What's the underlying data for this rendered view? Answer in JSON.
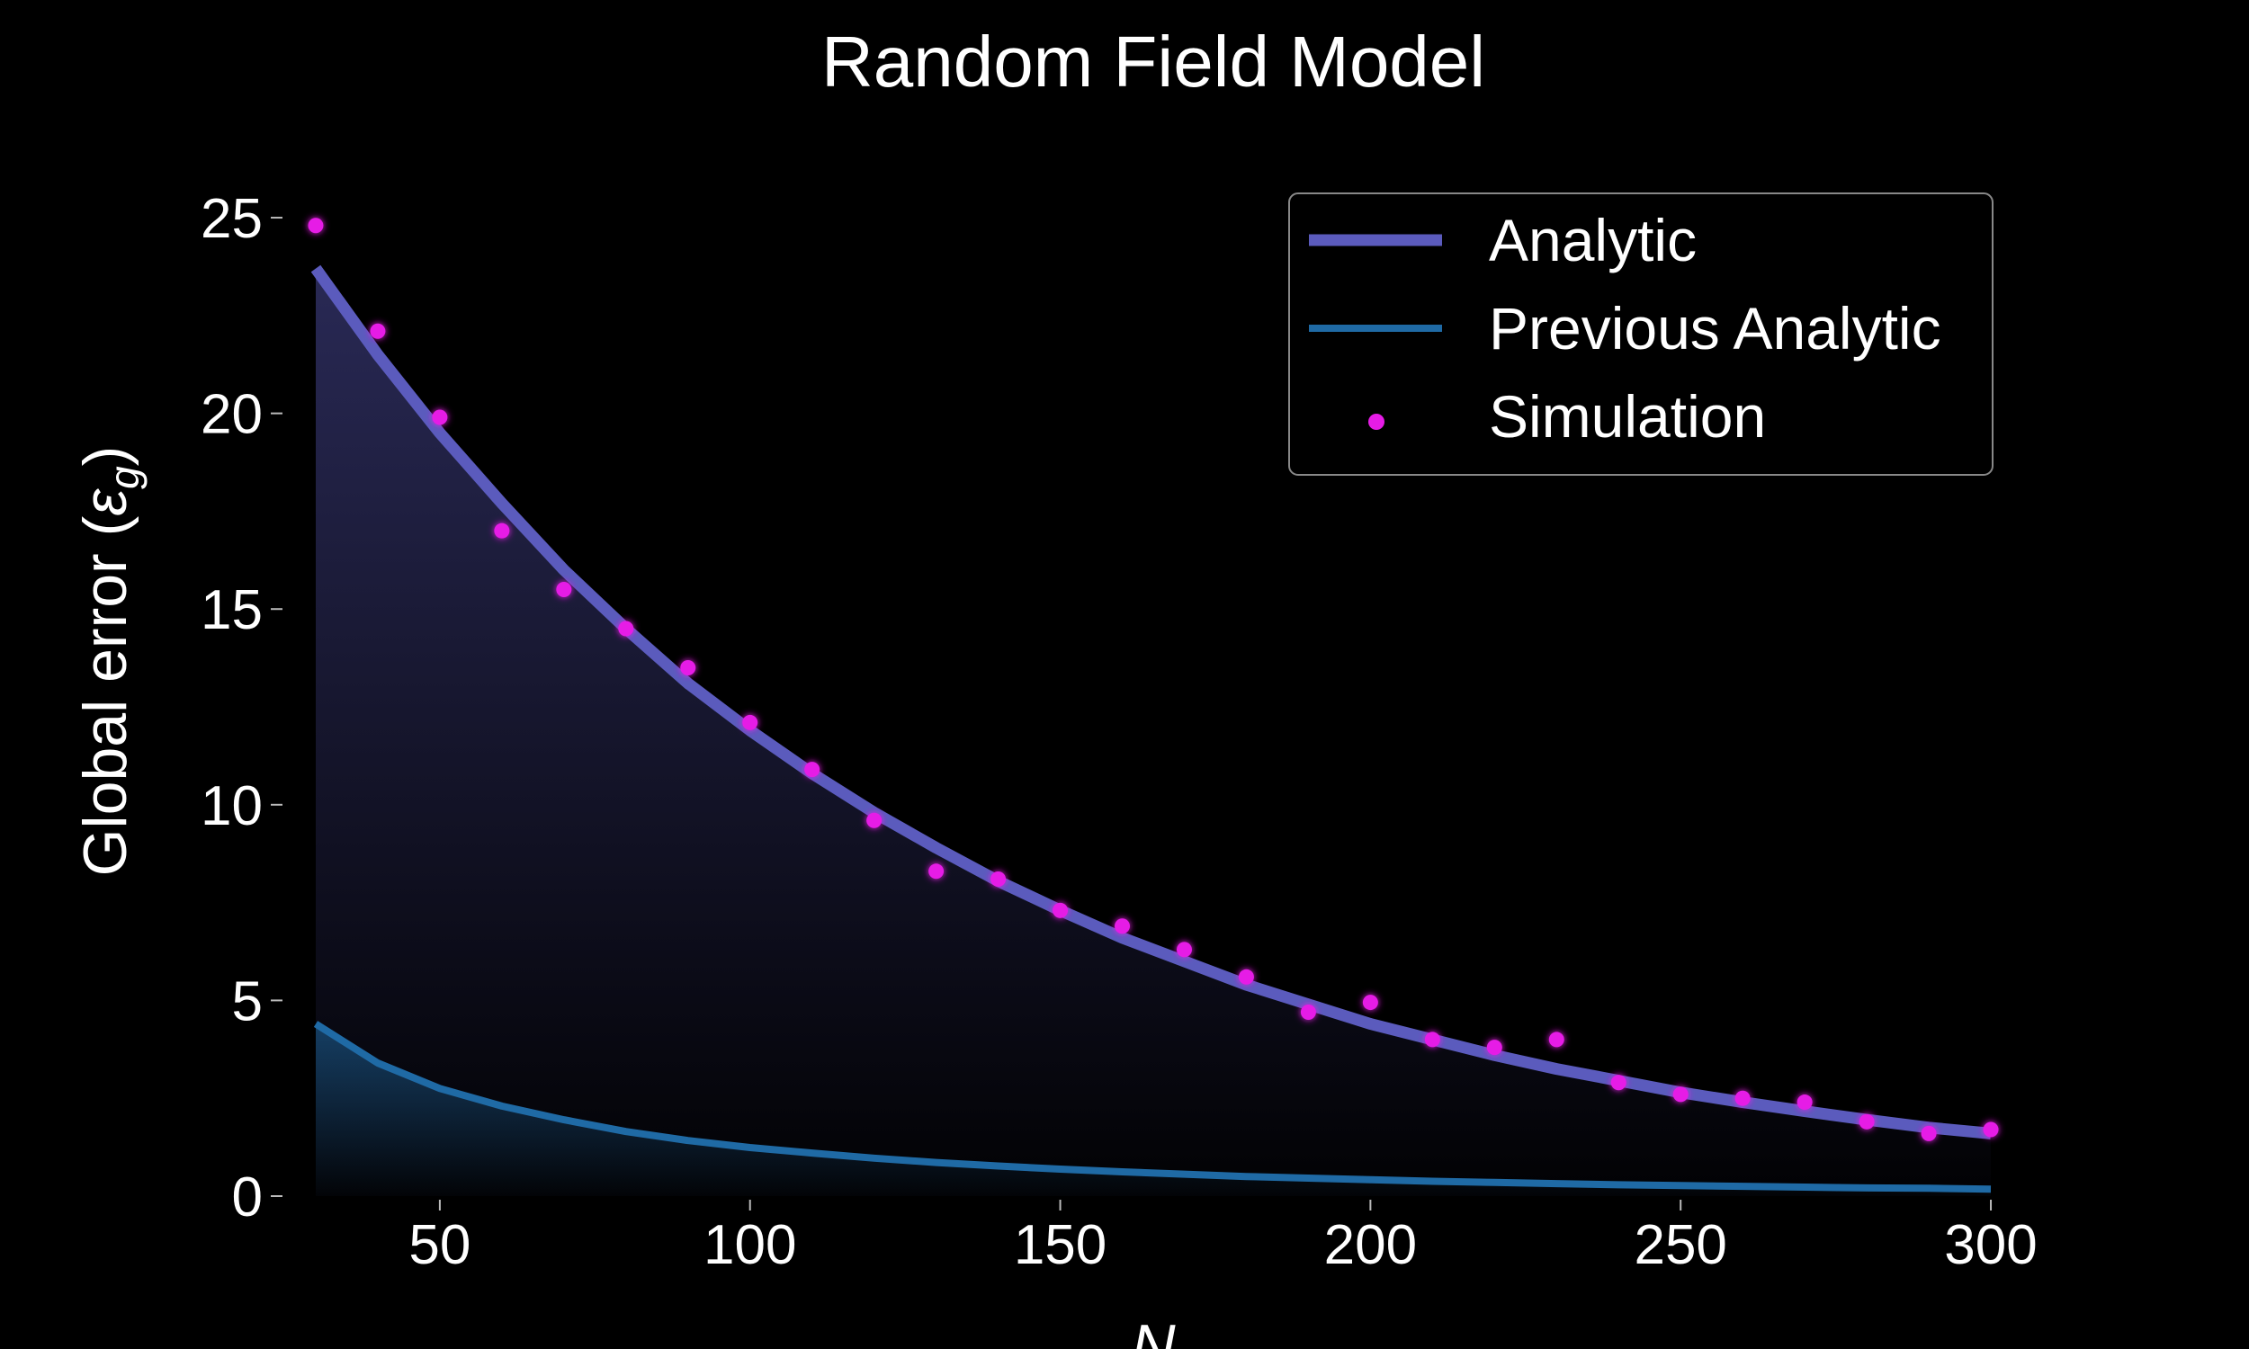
{
  "chart_data": {
    "type": "line",
    "title": "Random Field Model",
    "xlabel": "N",
    "ylabel": "Global error (εg)",
    "ylabel_parts": {
      "text": "Global error (",
      "symbol": "ε",
      "subscript": "g",
      "close": ")"
    },
    "xlim": [
      20,
      310
    ],
    "ylim": [
      0,
      27
    ],
    "xticks": [
      50,
      100,
      150,
      200,
      250,
      300
    ],
    "yticks": [
      0,
      5,
      10,
      15,
      20,
      25
    ],
    "grid": false,
    "legend_position": "top-right",
    "series": [
      {
        "name": "Analytic",
        "kind": "line",
        "color": "#5b5bbd",
        "x": [
          30,
          40,
          50,
          60,
          70,
          80,
          90,
          100,
          110,
          120,
          130,
          140,
          150,
          160,
          170,
          180,
          190,
          200,
          210,
          220,
          230,
          240,
          250,
          260,
          270,
          280,
          290,
          300
        ],
        "values": [
          23.7,
          21.5,
          19.5,
          17.7,
          16.0,
          14.5,
          13.1,
          11.9,
          10.8,
          9.8,
          8.9,
          8.05,
          7.3,
          6.6,
          6.0,
          5.4,
          4.9,
          4.4,
          4.0,
          3.6,
          3.25,
          2.95,
          2.65,
          2.4,
          2.17,
          1.95,
          1.75,
          1.6
        ]
      },
      {
        "name": "Previous Analytic",
        "kind": "line",
        "color": "#1f6aa5",
        "x": [
          30,
          40,
          50,
          60,
          70,
          80,
          90,
          100,
          110,
          120,
          130,
          140,
          150,
          160,
          170,
          180,
          190,
          200,
          210,
          220,
          230,
          240,
          250,
          260,
          270,
          280,
          290,
          300
        ],
        "values": [
          4.4,
          3.4,
          2.75,
          2.3,
          1.95,
          1.65,
          1.42,
          1.24,
          1.1,
          0.97,
          0.86,
          0.77,
          0.69,
          0.62,
          0.56,
          0.5,
          0.46,
          0.42,
          0.38,
          0.35,
          0.32,
          0.29,
          0.27,
          0.25,
          0.23,
          0.21,
          0.2,
          0.18
        ]
      },
      {
        "name": "Simulation",
        "kind": "scatter",
        "color": "#e61ce6",
        "x": [
          30,
          40,
          50,
          60,
          70,
          80,
          90,
          100,
          110,
          120,
          130,
          140,
          150,
          160,
          170,
          180,
          190,
          200,
          210,
          220,
          230,
          240,
          250,
          260,
          270,
          280,
          290,
          300
        ],
        "values": [
          24.8,
          22.1,
          19.9,
          17.0,
          15.5,
          14.5,
          13.5,
          12.1,
          10.9,
          9.6,
          8.3,
          8.1,
          7.3,
          6.9,
          6.3,
          5.6,
          4.7,
          4.95,
          4.0,
          3.8,
          4.0,
          2.9,
          2.6,
          2.5,
          2.4,
          1.9,
          1.6,
          1.7
        ]
      }
    ]
  }
}
